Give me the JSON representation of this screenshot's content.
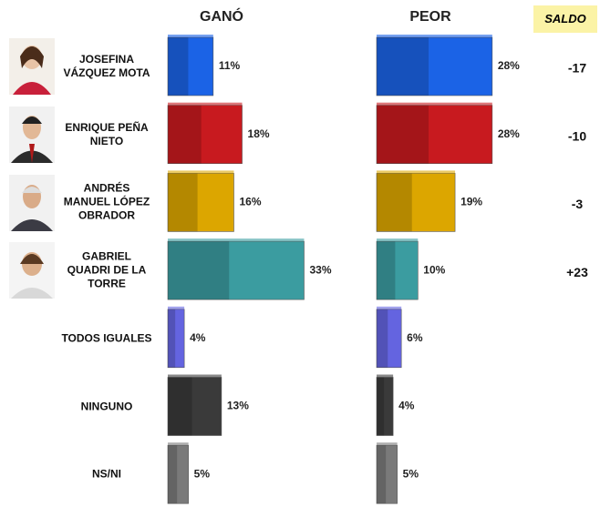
{
  "chart_data": {
    "type": "bar",
    "categories": [
      "JOSEFINA VÁZQUEZ MOTA",
      "ENRIQUE PEÑA NIETO",
      "ANDRÉS MANUEL LÓPEZ OBRADOR",
      "GABRIEL QUADRI DE LA TORRE",
      "TODOS IGUALES",
      "NINGUNO",
      "NS/NI"
    ],
    "colors": [
      "#1b63e6",
      "#c81a1f",
      "#dca600",
      "#3b9ca0",
      "#6464e0",
      "#3a3a3a",
      "#7a7a7a"
    ],
    "series": [
      {
        "name": "GANÓ",
        "values": [
          11,
          18,
          16,
          33,
          4,
          13,
          5
        ],
        "value_labels": [
          "11%",
          "18%",
          "16%",
          "33%",
          "4%",
          "13%",
          "5%"
        ]
      },
      {
        "name": "PEOR",
        "values": [
          28,
          28,
          19,
          10,
          6,
          4,
          5
        ],
        "value_labels": [
          "28%",
          "28%",
          "19%",
          "10%",
          "6%",
          "4%",
          "5%"
        ]
      }
    ],
    "saldo": {
      "title": "SALDO",
      "values": [
        -17,
        -10,
        -3,
        23,
        null,
        null,
        null
      ],
      "value_labels": [
        "-17",
        "-10",
        "-3",
        "+23",
        null,
        null,
        null
      ]
    }
  }
}
